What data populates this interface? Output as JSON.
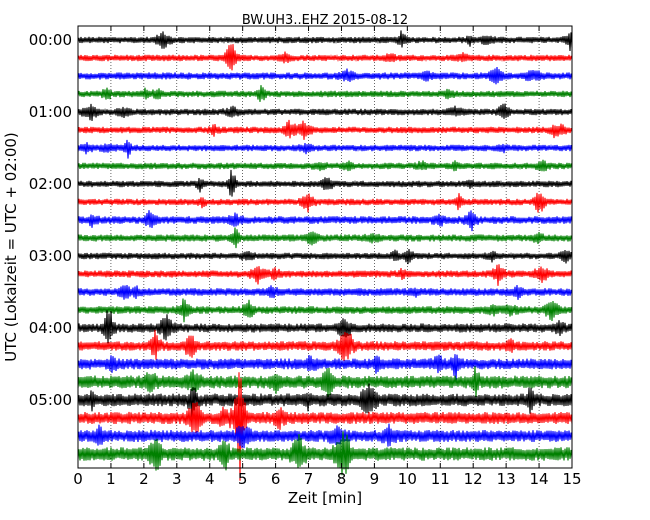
{
  "chart_data": {
    "type": "line",
    "title": "BW.UH3..EHZ 2015-08-12",
    "xlabel": "Zeit  [min]",
    "ylabel": "UTC (Lokalzeit = UTC + 02:00)",
    "xlim": [
      0,
      15
    ],
    "x_ticks": [
      "0",
      "1",
      "2",
      "3",
      "4",
      "5",
      "6",
      "7",
      "8",
      "9",
      "10",
      "11",
      "12",
      "13",
      "14",
      "15"
    ],
    "y_ticks": [
      "00:00",
      "01:00",
      "02:00",
      "03:00",
      "04:00",
      "05:00"
    ],
    "grid": true,
    "trace_colors": [
      "#000000",
      "#ff0000",
      "#0000ff",
      "#008000"
    ],
    "traces": [
      {
        "start": "00:00",
        "amplitude": 1.0
      },
      {
        "start": "00:15",
        "amplitude": 1.0
      },
      {
        "start": "00:30",
        "amplitude": 1.1
      },
      {
        "start": "00:45",
        "amplitude": 1.0
      },
      {
        "start": "01:00",
        "amplitude": 1.0
      },
      {
        "start": "01:15",
        "amplitude": 1.0
      },
      {
        "start": "01:30",
        "amplitude": 1.0
      },
      {
        "start": "01:45",
        "amplitude": 1.0
      },
      {
        "start": "02:00",
        "amplitude": 1.0
      },
      {
        "start": "02:15",
        "amplitude": 1.0
      },
      {
        "start": "02:30",
        "amplitude": 1.2
      },
      {
        "start": "02:45",
        "amplitude": 1.1
      },
      {
        "start": "03:00",
        "amplitude": 1.0
      },
      {
        "start": "03:15",
        "amplitude": 1.1
      },
      {
        "start": "03:30",
        "amplitude": 1.2
      },
      {
        "start": "03:45",
        "amplitude": 1.2
      },
      {
        "start": "04:00",
        "amplitude": 1.4
      },
      {
        "start": "04:15",
        "amplitude": 1.5
      },
      {
        "start": "04:30",
        "amplitude": 1.7
      },
      {
        "start": "04:45",
        "amplitude": 2.0
      },
      {
        "start": "05:00",
        "amplitude": 2.0
      },
      {
        "start": "05:15",
        "amplitude": 1.9
      },
      {
        "start": "05:30",
        "amplitude": 1.9
      },
      {
        "start": "05:45",
        "amplitude": 2.1
      }
    ]
  }
}
